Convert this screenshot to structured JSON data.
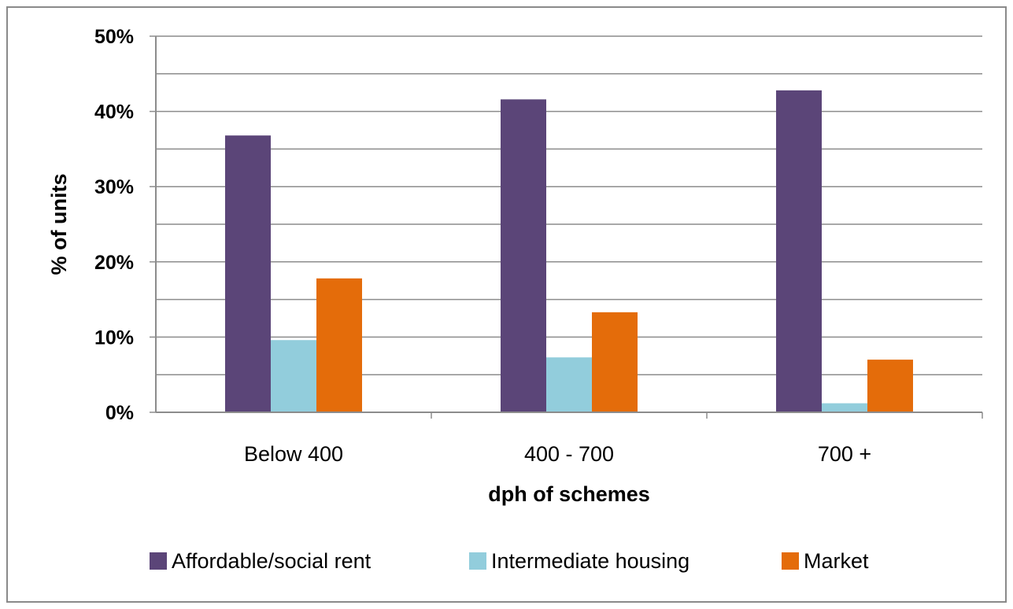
{
  "chart_data": {
    "type": "bar",
    "title": "",
    "xlabel": "dph of schemes",
    "ylabel": "% of units",
    "categories": [
      "Below 400",
      "400 - 700",
      "700 +"
    ],
    "series": [
      {
        "name": "Affordable/social rent",
        "color": "#5b4578",
        "values": [
          36.8,
          41.6,
          42.8
        ]
      },
      {
        "name": "Intermediate housing",
        "color": "#92cddc",
        "values": [
          9.6,
          7.3,
          1.2
        ]
      },
      {
        "name": "Market",
        "color": "#e46c0a",
        "values": [
          17.8,
          13.3,
          7.0
        ]
      }
    ],
    "ylim": [
      0,
      50
    ],
    "yticks": [
      0,
      10,
      20,
      30,
      40,
      50
    ],
    "ytick_labels": [
      "0%",
      "10%",
      "20%",
      "30%",
      "40%",
      "50%"
    ],
    "minor_gridlines_step": 5,
    "grid": true,
    "legend_position": "bottom"
  }
}
